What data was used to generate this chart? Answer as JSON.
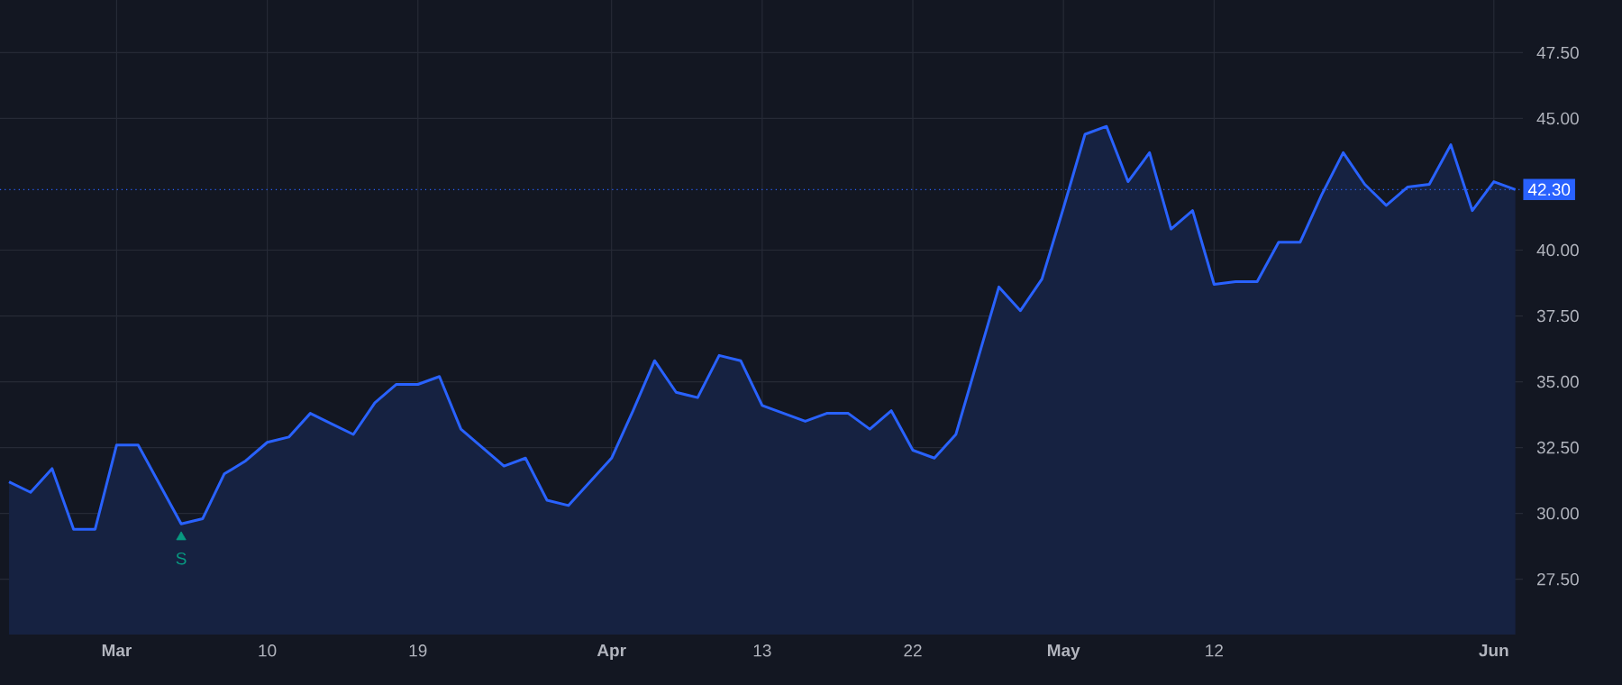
{
  "chart_data": {
    "type": "area",
    "categories": [
      null,
      null,
      null,
      null,
      null,
      "Mar",
      null,
      null,
      null,
      null,
      null,
      null,
      "10",
      null,
      null,
      null,
      null,
      null,
      null,
      "19",
      null,
      null,
      null,
      null,
      null,
      null,
      null,
      null,
      "Apr",
      null,
      null,
      null,
      null,
      null,
      null,
      "13",
      null,
      null,
      null,
      null,
      null,
      null,
      "22",
      null,
      null,
      null,
      null,
      null,
      null,
      "May",
      null,
      null,
      null,
      null,
      null,
      null,
      "12",
      null,
      null,
      null,
      null,
      null,
      null,
      null,
      null,
      null,
      null,
      null,
      null,
      "Jun",
      null
    ],
    "series": [
      {
        "color": "#2962ff",
        "values": [
          31.2,
          30.8,
          31.7,
          29.4,
          29.4,
          32.6,
          32.6,
          31.1,
          29.6,
          29.8,
          31.5,
          32.0,
          32.7,
          32.9,
          33.8,
          33.4,
          33.0,
          34.2,
          34.9,
          34.9,
          35.2,
          33.2,
          32.5,
          31.8,
          32.1,
          30.5,
          30.3,
          31.2,
          32.1,
          33.9,
          35.8,
          34.6,
          34.4,
          36.0,
          35.8,
          34.1,
          33.8,
          33.5,
          33.8,
          33.8,
          33.2,
          33.9,
          32.4,
          32.1,
          33.0,
          35.8,
          38.6,
          37.7,
          38.9,
          41.6,
          44.4,
          44.7,
          42.6,
          43.7,
          40.8,
          41.5,
          38.7,
          38.8,
          38.8,
          40.3,
          40.3,
          42.1,
          43.7,
          42.5,
          41.7,
          42.4,
          42.5,
          44.0,
          41.5,
          42.6,
          42.3
        ]
      },
      {
        "type": "scatter",
        "name": "S",
        "color": "#089981",
        "marker": "triangle",
        "values": [
          null,
          null,
          null,
          null,
          null,
          null,
          null,
          null,
          29.1,
          null,
          null,
          null,
          null,
          null,
          null,
          null,
          null,
          null,
          null,
          null,
          null,
          null,
          null,
          null,
          null,
          null,
          null,
          null,
          null,
          null,
          null,
          null,
          null,
          null,
          null,
          null,
          null,
          null,
          null,
          null,
          null,
          null,
          null,
          null,
          null,
          null,
          null,
          null,
          null,
          null,
          null,
          null,
          null,
          null,
          null,
          null,
          null,
          null,
          null,
          null,
          null,
          null,
          null,
          null,
          null,
          null,
          null,
          null,
          null,
          null,
          null
        ]
      }
    ],
    "ylim": [
      25.4,
      49.5
    ],
    "yticks": [
      {
        "value": 27.5,
        "label": "27.50"
      },
      {
        "value": 30,
        "label": "30.00"
      },
      {
        "value": 32.5,
        "label": "32.50"
      },
      {
        "value": 35,
        "label": "35.00"
      },
      {
        "value": 37.5,
        "label": "37.50"
      },
      {
        "value": 40,
        "label": "40.00"
      },
      {
        "value": 45,
        "label": "45.00"
      },
      {
        "value": 47.5,
        "label": "47.50"
      }
    ],
    "ref_lines": [
      {
        "axis": "y",
        "value": 42.3,
        "label": "42.30",
        "color": "#2962ff",
        "line_style": "dotted"
      }
    ],
    "grid": true,
    "line_style": "solid"
  }
}
